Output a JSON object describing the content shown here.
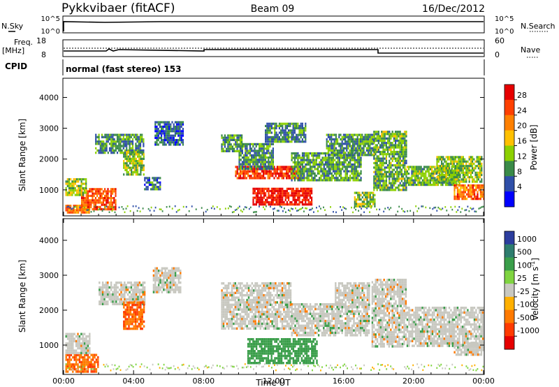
{
  "header": {
    "station": "Pykkvibaer (fitACF)",
    "beam": "Beam 09",
    "date": "16/Dec/2012"
  },
  "aux_panels": {
    "nsky_label": "N.Sky",
    "nsearch_label": "N.Search",
    "nsky_ticks": [
      "10^5",
      "10^0"
    ],
    "nsearch_ticks": [
      "10^5",
      "10^0"
    ],
    "freq_label_1": "Freq.",
    "freq_label_2": "[MHz]",
    "freq_ticks": [
      "18",
      "8"
    ],
    "nave_label": "Nave",
    "nave_ticks": [
      "60",
      "0"
    ],
    "cpid_label": "CPID",
    "cpid_text": "normal (fast stereo) 153"
  },
  "colorbars": {
    "power": {
      "label": "Power [dB]",
      "ticks": [
        "28",
        "24",
        "20",
        "16",
        "12",
        "8",
        "4"
      ],
      "colors": [
        "#e60000",
        "#ff4000",
        "#ff8000",
        "#ffc000",
        "#8cd000",
        "#3a8a48",
        "#2f4fa8",
        "#0000ff"
      ]
    },
    "velocity": {
      "label": "Velocity [m s",
      "label_sup": "-1",
      "label_end": "]",
      "ticks": [
        "1000",
        "500",
        "100",
        "25",
        "-25",
        "-100",
        "-500",
        "-1000"
      ],
      "colors": [
        "#2c3d9e",
        "#2e7d6e",
        "#3a9e4a",
        "#7fd440",
        "#c8c8c0",
        "#ffb000",
        "#ff7a00",
        "#ff3b00",
        "#e60000"
      ]
    }
  },
  "axes": {
    "ylabel": "Slant Range [km]",
    "yticks": [
      "4000",
      "3000",
      "2000",
      "1000"
    ],
    "xlabel": "Time UT",
    "xticks": [
      "00:00",
      "04:00",
      "08:00",
      "12:00",
      "16:00",
      "20:00",
      "00:00"
    ]
  },
  "chart_data": [
    {
      "type": "heatmap",
      "title": "Power [dB]",
      "xlabel": "Time UT",
      "ylabel": "Slant Range [km]",
      "xlim_hours": [
        0,
        24
      ],
      "ylim_km": [
        180,
        4600
      ],
      "color_scale_db": [
        0,
        30
      ],
      "patches": [
        {
          "t": [
            0.1,
            1.5
          ],
          "r": [
            270,
            520
          ],
          "db": 22
        },
        {
          "t": [
            1.0,
            3.0
          ],
          "r": [
            380,
            1060
          ],
          "db": 24
        },
        {
          "t": [
            0.1,
            1.3
          ],
          "r": [
            820,
            1380
          ],
          "db": 13
        },
        {
          "t": [
            1.8,
            4.6
          ],
          "r": [
            2220,
            2820
          ],
          "db": 9
        },
        {
          "t": [
            3.4,
            4.6
          ],
          "r": [
            1500,
            2260
          ],
          "db": 12
        },
        {
          "t": [
            4.6,
            5.5
          ],
          "r": [
            1050,
            1420
          ],
          "db": 7
        },
        {
          "t": [
            5.2,
            6.8
          ],
          "r": [
            2500,
            3230
          ],
          "db": 6
        },
        {
          "t": [
            9.0,
            10.2
          ],
          "r": [
            2280,
            2800
          ],
          "db": 9
        },
        {
          "t": [
            9.8,
            13.5
          ],
          "r": [
            1380,
            1780
          ],
          "db": 26
        },
        {
          "t": [
            10.8,
            14.2
          ],
          "r": [
            550,
            1070
          ],
          "db": 29
        },
        {
          "t": [
            10.0,
            12.0
          ],
          "r": [
            1700,
            2520
          ],
          "db": 9
        },
        {
          "t": [
            11.5,
            13.8
          ],
          "r": [
            2580,
            3180
          ],
          "db": 8
        },
        {
          "t": [
            13.0,
            17.0
          ],
          "r": [
            1280,
            2220
          ],
          "db": 10
        },
        {
          "t": [
            15.0,
            17.8
          ],
          "r": [
            2100,
            2820
          ],
          "db": 9
        },
        {
          "t": [
            16.6,
            17.8
          ],
          "r": [
            480,
            940
          ],
          "db": 13
        },
        {
          "t": [
            17.7,
            19.6
          ],
          "r": [
            980,
            2920
          ],
          "db": 11
        },
        {
          "t": [
            19.6,
            22.6
          ],
          "r": [
            1180,
            1780
          ],
          "db": 11
        },
        {
          "t": [
            21.3,
            23.9
          ],
          "r": [
            1300,
            2100
          ],
          "db": 12
        },
        {
          "t": [
            22.3,
            24.0
          ],
          "r": [
            700,
            1180
          ],
          "db": 23
        }
      ]
    },
    {
      "type": "heatmap",
      "title": "Velocity [m s-1]",
      "xlabel": "Time UT",
      "ylabel": "Slant Range [km]",
      "xlim_hours": [
        0,
        24
      ],
      "ylim_km": [
        180,
        4600
      ],
      "patches": [
        {
          "t": [
            0.1,
            2.0
          ],
          "r": [
            270,
            750
          ],
          "v": -450
        },
        {
          "t": [
            0.1,
            1.5
          ],
          "r": [
            750,
            1350
          ],
          "v": 0
        },
        {
          "t": [
            2.0,
            4.6
          ],
          "r": [
            2200,
            2820
          ],
          "v": 0
        },
        {
          "t": [
            3.4,
            4.6
          ],
          "r": [
            1450,
            2250
          ],
          "v": -450
        },
        {
          "t": [
            5.1,
            6.7
          ],
          "r": [
            2500,
            3230
          ],
          "v": 0
        },
        {
          "t": [
            9.0,
            13.0
          ],
          "r": [
            1450,
            2800
          ],
          "v": 0
        },
        {
          "t": [
            10.5,
            14.5
          ],
          "r": [
            500,
            1200
          ],
          "v": 200
        },
        {
          "t": [
            13.0,
            17.5
          ],
          "r": [
            1300,
            2200
          ],
          "v": 0
        },
        {
          "t": [
            15.5,
            17.5
          ],
          "r": [
            2100,
            2800
          ],
          "v": 0
        },
        {
          "t": [
            17.6,
            19.6
          ],
          "r": [
            950,
            2900
          ],
          "v": 0
        },
        {
          "t": [
            19.6,
            24.0
          ],
          "r": [
            1000,
            2100
          ],
          "v": 0
        },
        {
          "t": [
            22.3,
            24.0
          ],
          "r": [
            700,
            1100
          ],
          "v": 0
        }
      ]
    }
  ]
}
